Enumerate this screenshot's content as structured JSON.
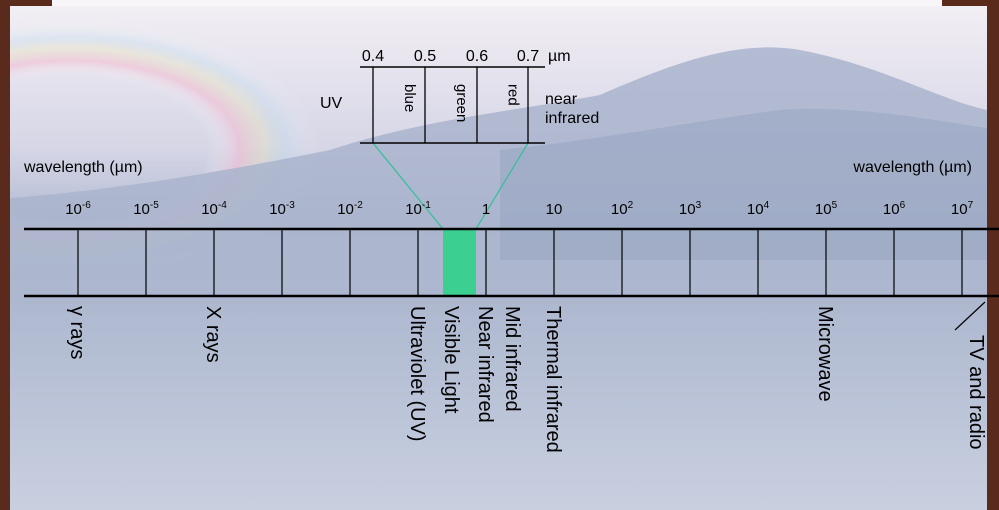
{
  "colors": {
    "visible_band": "#3ccf92",
    "connector": "#3bbf9a",
    "axis": "#000000",
    "frame": "#5a2a1c"
  },
  "inset": {
    "unit": "µm",
    "wavelengths": [
      "0.4",
      "0.5",
      "0.6",
      "0.7"
    ],
    "left_label": "UV",
    "bands": [
      "blue",
      "green",
      "red"
    ],
    "right_label_line1": "near",
    "right_label_line2": "infrared"
  },
  "scale": {
    "left_label": "wavelength (µm)",
    "right_label": "wavelength (µm)",
    "ticks": [
      {
        "base": "10",
        "exp": "-6"
      },
      {
        "base": "10",
        "exp": "-5"
      },
      {
        "base": "10",
        "exp": "-4"
      },
      {
        "base": "10",
        "exp": "-3"
      },
      {
        "base": "10",
        "exp": "-2"
      },
      {
        "base": "10",
        "exp": "-1"
      },
      {
        "base": "1",
        "exp": ""
      },
      {
        "base": "10",
        "exp": ""
      },
      {
        "base": "10",
        "exp": "2"
      },
      {
        "base": "10",
        "exp": "3"
      },
      {
        "base": "10",
        "exp": "4"
      },
      {
        "base": "10",
        "exp": "5"
      },
      {
        "base": "10",
        "exp": "6"
      },
      {
        "base": "10",
        "exp": "7"
      }
    ]
  },
  "regions": [
    {
      "label": "γ rays",
      "decade": -6
    },
    {
      "label": "X rays",
      "decade": -4
    },
    {
      "label": "Ultraviolet (UV)",
      "decade": -1
    },
    {
      "label": "Visible Light",
      "decade": -0.5
    },
    {
      "label": "Near infrared",
      "decade": 0
    },
    {
      "label": "Mid infrared",
      "decade": 0.4
    },
    {
      "label": "Thermal infrared",
      "decade": 1
    },
    {
      "label": "Microwave",
      "decade": 5
    },
    {
      "label": "TV and radio",
      "decade": 7
    }
  ]
}
